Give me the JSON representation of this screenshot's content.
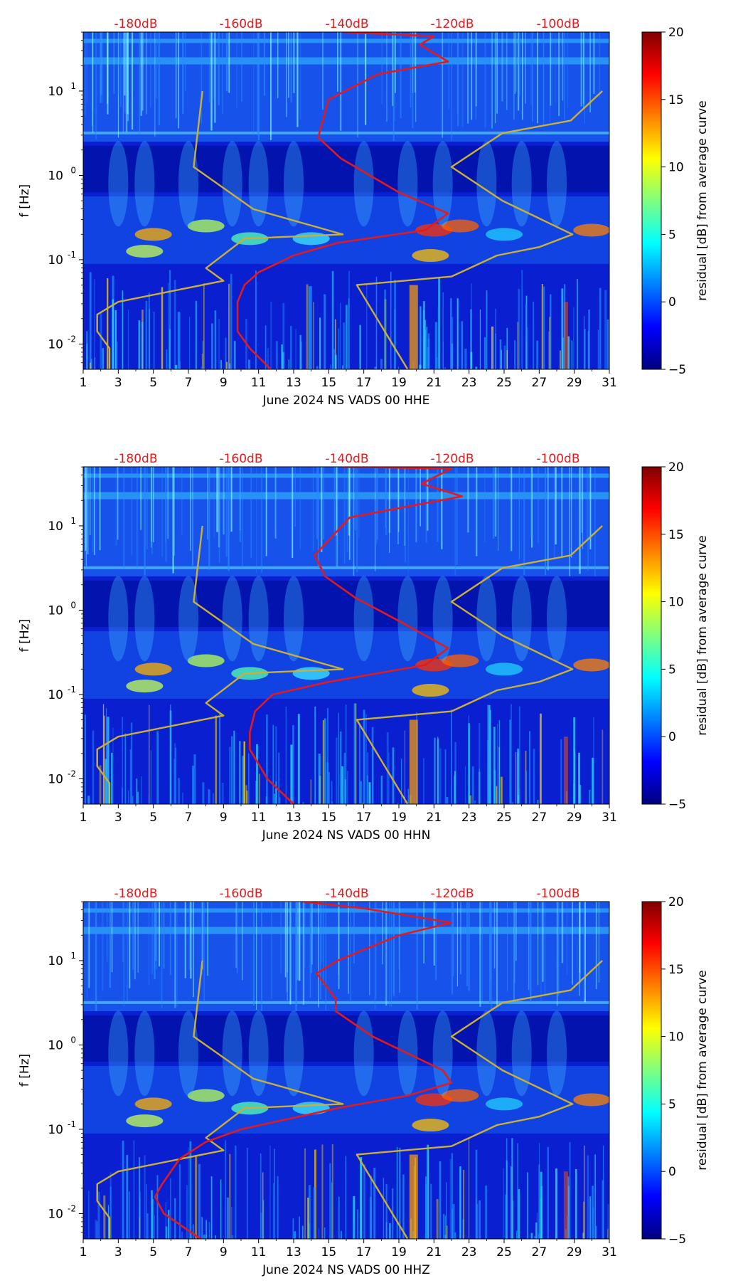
{
  "chart_data": [
    {
      "type": "heatmap",
      "title": "",
      "xlabel": "June 2024 NS VADS 00 HHE",
      "ylabel": "f [Hz]",
      "x_ticks": [
        "1",
        "3",
        "5",
        "7",
        "9",
        "11",
        "13",
        "15",
        "17",
        "19",
        "21",
        "23",
        "25",
        "27",
        "29",
        "31"
      ],
      "y_ticks": [
        "10^{-2}",
        "10^{-1}",
        "10^{0}",
        "10^{1}"
      ],
      "xlim": [
        1,
        31
      ],
      "ylim_log10": [
        -2.3,
        1.7
      ],
      "top_labels": [
        "-180dB",
        "-160dB",
        "-140dB",
        "-120dB",
        "-100dB"
      ],
      "colorbar": {
        "label": "residual [dB] from average curve",
        "ticks": [
          "20",
          "15",
          "10",
          "5",
          "0",
          "−5"
        ],
        "range": [
          -5,
          20
        ]
      },
      "series": [
        {
          "name": "model limit curve",
          "color": "#c9b037",
          "points": [
            [
              7.8,
              1.0
            ],
            [
              7.3,
              0.1
            ],
            [
              10.7,
              -0.4
            ],
            [
              15.8,
              -0.7
            ],
            [
              10.2,
              -0.75
            ],
            [
              8.0,
              -1.1
            ],
            [
              9.0,
              -1.25
            ],
            [
              3.0,
              -1.5
            ],
            [
              1.8,
              -1.65
            ],
            [
              1.8,
              -1.85
            ],
            [
              2.5,
              -2.05
            ],
            [
              2.5,
              -2.3
            ]
          ]
        },
        {
          "name": "model limit curve right",
          "color": "#c9b037",
          "points": [
            [
              30.6,
              1.0
            ],
            [
              28.8,
              0.65
            ],
            [
              24.9,
              0.5
            ],
            [
              22.0,
              0.1
            ],
            [
              24.9,
              -0.3
            ],
            [
              28.9,
              -0.7
            ],
            [
              27.0,
              -0.85
            ],
            [
              24.6,
              -0.95
            ],
            [
              22.0,
              -1.2
            ],
            [
              16.6,
              -1.3
            ],
            [
              19.5,
              -2.3
            ]
          ]
        },
        {
          "name": "PSD",
          "color": "#e31a1c",
          "points": [
            [
              15.8,
              1.7
            ],
            [
              21.0,
              1.65
            ],
            [
              20.2,
              1.55
            ],
            [
              21.8,
              1.35
            ],
            [
              17.8,
              1.2
            ],
            [
              15.0,
              0.9
            ],
            [
              14.4,
              0.45
            ],
            [
              15.7,
              0.2
            ],
            [
              19.0,
              -0.2
            ],
            [
              21.8,
              -0.45
            ],
            [
              20.5,
              -0.65
            ],
            [
              15.5,
              -0.8
            ],
            [
              13.0,
              -0.95
            ],
            [
              11.0,
              -1.15
            ],
            [
              10.2,
              -1.3
            ],
            [
              9.8,
              -1.5
            ],
            [
              9.8,
              -1.85
            ],
            [
              10.5,
              -2.05
            ],
            [
              11.7,
              -2.3
            ]
          ]
        }
      ]
    },
    {
      "type": "heatmap",
      "title": "",
      "xlabel": "June 2024 NS VADS 00 HHN",
      "ylabel": "f [Hz]",
      "x_ticks": [
        "1",
        "3",
        "5",
        "7",
        "9",
        "11",
        "13",
        "15",
        "17",
        "19",
        "21",
        "23",
        "25",
        "27",
        "29",
        "31"
      ],
      "y_ticks": [
        "10^{-2}",
        "10^{-1}",
        "10^{0}",
        "10^{1}"
      ],
      "xlim": [
        1,
        31
      ],
      "ylim_log10": [
        -2.3,
        1.7
      ],
      "top_labels": [
        "-180dB",
        "-160dB",
        "-140dB",
        "-120dB",
        "-100dB"
      ],
      "colorbar": {
        "label": "residual [dB] from average curve",
        "ticks": [
          "20",
          "15",
          "10",
          "5",
          "0",
          "−5"
        ],
        "range": [
          -5,
          20
        ]
      },
      "series": [
        {
          "name": "model limit curve",
          "color": "#c9b037",
          "points": [
            [
              7.8,
              1.0
            ],
            [
              7.3,
              0.1
            ],
            [
              10.7,
              -0.4
            ],
            [
              15.8,
              -0.7
            ],
            [
              10.2,
              -0.75
            ],
            [
              8.0,
              -1.1
            ],
            [
              9.0,
              -1.25
            ],
            [
              3.0,
              -1.5
            ],
            [
              1.8,
              -1.65
            ],
            [
              1.8,
              -1.85
            ],
            [
              2.5,
              -2.05
            ],
            [
              2.5,
              -2.3
            ]
          ]
        },
        {
          "name": "model limit curve right",
          "color": "#c9b037",
          "points": [
            [
              30.6,
              1.0
            ],
            [
              28.8,
              0.65
            ],
            [
              24.9,
              0.5
            ],
            [
              22.0,
              0.1
            ],
            [
              24.9,
              -0.3
            ],
            [
              28.9,
              -0.7
            ],
            [
              27.0,
              -0.85
            ],
            [
              24.6,
              -0.95
            ],
            [
              22.0,
              -1.2
            ],
            [
              16.6,
              -1.3
            ],
            [
              19.5,
              -2.3
            ]
          ]
        },
        {
          "name": "PSD",
          "color": "#e31a1c",
          "points": [
            [
              15.8,
              1.7
            ],
            [
              22.0,
              1.68
            ],
            [
              20.3,
              1.5
            ],
            [
              22.6,
              1.35
            ],
            [
              16.2,
              1.1
            ],
            [
              14.2,
              0.65
            ],
            [
              14.8,
              0.4
            ],
            [
              16.5,
              0.15
            ],
            [
              19.2,
              -0.15
            ],
            [
              21.8,
              -0.45
            ],
            [
              20.5,
              -0.65
            ],
            [
              15.0,
              -0.85
            ],
            [
              11.8,
              -1.0
            ],
            [
              10.8,
              -1.2
            ],
            [
              10.5,
              -1.45
            ],
            [
              10.5,
              -1.65
            ],
            [
              11.5,
              -2.0
            ],
            [
              13.0,
              -2.3
            ]
          ]
        }
      ]
    },
    {
      "type": "heatmap",
      "title": "",
      "xlabel": "June 2024 NS VADS 00 HHZ",
      "ylabel": "f [Hz]",
      "x_ticks": [
        "1",
        "3",
        "5",
        "7",
        "9",
        "11",
        "13",
        "15",
        "17",
        "19",
        "21",
        "23",
        "25",
        "27",
        "29",
        "31"
      ],
      "y_ticks": [
        "10^{-2}",
        "10^{-1}",
        "10^{0}",
        "10^{1}"
      ],
      "xlim": [
        1,
        31
      ],
      "ylim_log10": [
        -2.3,
        1.7
      ],
      "top_labels": [
        "-180dB",
        "-160dB",
        "-140dB",
        "-120dB",
        "-100dB"
      ],
      "colorbar": {
        "label": "residual [dB] from average curve",
        "ticks": [
          "20",
          "15",
          "10",
          "5",
          "0",
          "−5"
        ],
        "range": [
          -5,
          20
        ]
      },
      "series": [
        {
          "name": "model limit curve",
          "color": "#c9b037",
          "points": [
            [
              7.8,
              1.0
            ],
            [
              7.3,
              0.1
            ],
            [
              10.7,
              -0.4
            ],
            [
              15.8,
              -0.7
            ],
            [
              10.2,
              -0.75
            ],
            [
              8.0,
              -1.1
            ],
            [
              9.0,
              -1.25
            ],
            [
              3.0,
              -1.5
            ],
            [
              1.8,
              -1.65
            ],
            [
              1.8,
              -1.85
            ],
            [
              2.5,
              -2.05
            ],
            [
              2.5,
              -2.3
            ]
          ]
        },
        {
          "name": "model limit curve right",
          "color": "#c9b037",
          "points": [
            [
              30.6,
              1.0
            ],
            [
              28.8,
              0.65
            ],
            [
              24.9,
              0.5
            ],
            [
              22.0,
              0.1
            ],
            [
              24.9,
              -0.3
            ],
            [
              28.9,
              -0.7
            ],
            [
              27.0,
              -0.85
            ],
            [
              24.6,
              -0.95
            ],
            [
              22.0,
              -1.2
            ],
            [
              16.6,
              -1.3
            ],
            [
              19.5,
              -2.3
            ]
          ]
        },
        {
          "name": "PSD",
          "color": "#e31a1c",
          "points": [
            [
              13.5,
              1.7
            ],
            [
              17.0,
              1.62
            ],
            [
              22.0,
              1.45
            ],
            [
              19.0,
              1.3
            ],
            [
              15.5,
              1.0
            ],
            [
              14.3,
              0.85
            ],
            [
              15.4,
              0.55
            ],
            [
              15.4,
              0.4
            ],
            [
              17.5,
              0.1
            ],
            [
              21.5,
              -0.3
            ],
            [
              22.0,
              -0.45
            ],
            [
              19.5,
              -0.6
            ],
            [
              15.5,
              -0.75
            ],
            [
              10.0,
              -1.0
            ],
            [
              8.0,
              -1.15
            ],
            [
              6.5,
              -1.35
            ],
            [
              5.5,
              -1.65
            ],
            [
              5.1,
              -1.8
            ],
            [
              5.6,
              -2.0
            ],
            [
              7.0,
              -2.2
            ],
            [
              7.7,
              -2.3
            ]
          ]
        }
      ]
    }
  ]
}
